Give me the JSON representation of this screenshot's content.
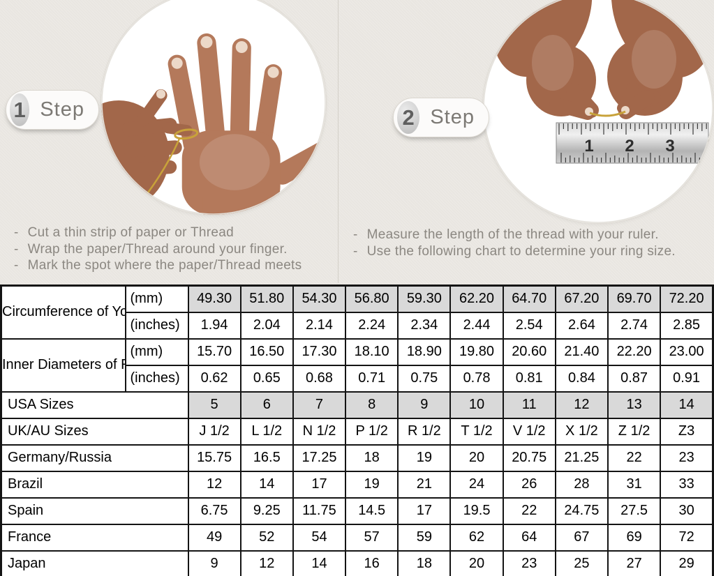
{
  "ui": {
    "bullet": "-"
  },
  "colors": {
    "background": "#e9e6e1",
    "table_shaded_cell": "#d9d9d9",
    "table_border": "#141414",
    "instruction_text": "#8b8781",
    "step_text": "#7c7974",
    "badge_number": "#5f5f5f",
    "skin": "#b4795b",
    "skin_dark": "#a2674a",
    "nail": "#ecd9c9",
    "thread_gold": "#c8a23a"
  },
  "steps": [
    {
      "number": "1",
      "label": "Step",
      "photo": "hand-with-thread-wrapped-on-finger",
      "instructions": [
        "Cut a thin strip of paper or Thread",
        "Wrap the paper/Thread around your finger.",
        "Mark the spot where the paper/Thread meets"
      ]
    },
    {
      "number": "2",
      "label": "Step",
      "photo": "hands-measuring-thread-with-ruler",
      "instructions": [
        "Measure the length of the thread with your ruler.",
        "Use the following chart to determine your ring size."
      ],
      "ruler_numbers": [
        "1",
        "2",
        "3"
      ]
    }
  ],
  "size_chart": {
    "type": "table",
    "groups": [
      {
        "label": "Circumference of Your Finger",
        "rows": [
          {
            "unit": "(mm)",
            "shaded": true,
            "values": [
              "49.30",
              "51.80",
              "54.30",
              "56.80",
              "59.30",
              "62.20",
              "64.70",
              "67.20",
              "69.70",
              "72.20"
            ]
          },
          {
            "unit": "(inches)",
            "shaded": false,
            "values": [
              "1.94",
              "2.04",
              "2.14",
              "2.24",
              "2.34",
              "2.44",
              "2.54",
              "2.64",
              "2.74",
              "2.85"
            ]
          }
        ]
      },
      {
        "label": "Inner Diameters of Rings",
        "rows": [
          {
            "unit": "(mm)",
            "shaded": false,
            "values": [
              "15.70",
              "16.50",
              "17.30",
              "18.10",
              "18.90",
              "19.80",
              "20.60",
              "21.40",
              "22.20",
              "23.00"
            ]
          },
          {
            "unit": "(inches)",
            "shaded": false,
            "values": [
              "0.62",
              "0.65",
              "0.68",
              "0.71",
              "0.75",
              "0.78",
              "0.81",
              "0.84",
              "0.87",
              "0.91"
            ]
          }
        ]
      }
    ],
    "size_rows": [
      {
        "label": "USA Sizes",
        "shaded": true,
        "values": [
          "5",
          "6",
          "7",
          "8",
          "9",
          "10",
          "11",
          "12",
          "13",
          "14"
        ]
      },
      {
        "label": "UK/AU Sizes",
        "shaded": false,
        "values": [
          "J 1/2",
          "L 1/2",
          "N 1/2",
          "P 1/2",
          "R 1/2",
          "T 1/2",
          "V 1/2",
          "X 1/2",
          "Z 1/2",
          "Z3"
        ]
      },
      {
        "label": "Germany/Russia",
        "shaded": false,
        "values": [
          "15.75",
          "16.5",
          "17.25",
          "18",
          "19",
          "20",
          "20.75",
          "21.25",
          "22",
          "23"
        ]
      },
      {
        "label": "Brazil",
        "shaded": false,
        "values": [
          "12",
          "14",
          "17",
          "19",
          "21",
          "24",
          "26",
          "28",
          "31",
          "33"
        ]
      },
      {
        "label": "Spain",
        "shaded": false,
        "values": [
          "6.75",
          "9.25",
          "11.75",
          "14.5",
          "17",
          "19.5",
          "22",
          "24.75",
          "27.5",
          "30"
        ]
      },
      {
        "label": "France",
        "shaded": false,
        "values": [
          "49",
          "52",
          "54",
          "57",
          "59",
          "62",
          "64",
          "67",
          "69",
          "72"
        ]
      },
      {
        "label": "Japan",
        "shaded": false,
        "values": [
          "9",
          "12",
          "14",
          "16",
          "18",
          "20",
          "23",
          "25",
          "27",
          "29"
        ]
      }
    ]
  }
}
